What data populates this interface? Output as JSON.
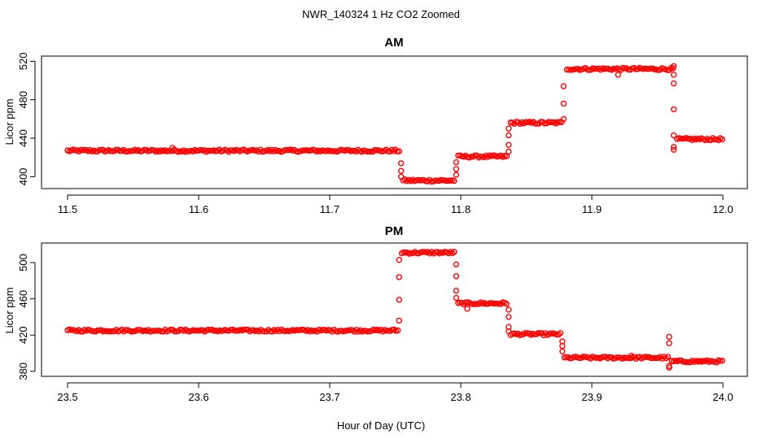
{
  "chart_data": {
    "type": "scatter",
    "title": "NWR_140324  1 Hz CO2 Zoomed",
    "xlabel": "Hour of Day (UTC)",
    "point_color": "#ff0000",
    "marker": "open-circle",
    "panels": [
      {
        "title": "AM",
        "ylabel": "Licor ppm",
        "xlim": [
          11.5,
          12.0
        ],
        "ylim": [
          391,
          522
        ],
        "x_ticks": [
          11.5,
          11.6,
          11.7,
          11.8,
          11.9,
          12.0
        ],
        "x_tick_labels": [
          "11.5",
          "11.6",
          "11.7",
          "11.8",
          "11.9",
          "12.0"
        ],
        "y_ticks": [
          400,
          440,
          480,
          520
        ],
        "y_tick_labels": [
          "400",
          "440",
          "480",
          "520"
        ],
        "steps": [
          {
            "x_start": 11.5,
            "x_end": 11.753,
            "value": 427
          },
          {
            "x_start": 11.756,
            "x_end": 11.795,
            "value": 396
          },
          {
            "x_start": 11.798,
            "x_end": 11.835,
            "value": 421
          },
          {
            "x_start": 11.838,
            "x_end": 11.877,
            "value": 456
          },
          {
            "x_start": 11.881,
            "x_end": 11.962,
            "value": 512
          },
          {
            "x_start": 11.965,
            "x_end": 11.9995,
            "value": 439
          }
        ],
        "transitions": [
          {
            "x": 11.7545,
            "values": [
              414,
              406,
              400
            ]
          },
          {
            "x": 11.7965,
            "values": [
              402,
              408,
              415
            ]
          },
          {
            "x": 11.8365,
            "values": [
              426,
              433,
              443,
              450
            ]
          },
          {
            "x": 11.8785,
            "values": [
              460,
              476,
              494
            ]
          },
          {
            "x": 11.9625,
            "values": [
              515,
              506,
              497,
              470,
              443,
              431,
              428
            ]
          }
        ],
        "outliers": [
          {
            "x": 11.92,
            "y": 506
          },
          {
            "x": 11.58,
            "y": 430
          }
        ]
      },
      {
        "title": "PM",
        "ylabel": "Licor ppm",
        "xlim": [
          23.5,
          24.0
        ],
        "ylim": [
          378,
          518
        ],
        "x_ticks": [
          23.5,
          23.6,
          23.7,
          23.8,
          23.9,
          24.0
        ],
        "x_tick_labels": [
          "23.5",
          "23.6",
          "23.7",
          "23.8",
          "23.9",
          "24.0"
        ],
        "y_ticks": [
          380,
          420,
          460,
          500
        ],
        "y_tick_labels": [
          "380",
          "420",
          "460",
          "500"
        ],
        "steps": [
          {
            "x_start": 23.5,
            "x_end": 23.752,
            "value": 425
          },
          {
            "x_start": 23.755,
            "x_end": 23.795,
            "value": 511
          },
          {
            "x_start": 23.798,
            "x_end": 23.835,
            "value": 455
          },
          {
            "x_start": 23.838,
            "x_end": 23.876,
            "value": 421
          },
          {
            "x_start": 23.879,
            "x_end": 23.958,
            "value": 395
          },
          {
            "x_start": 23.961,
            "x_end": 23.9995,
            "value": 391
          }
        ],
        "transitions": [
          {
            "x": 23.753,
            "values": [
              436,
              459,
              484,
              503
            ]
          },
          {
            "x": 23.7965,
            "values": [
              498,
              485,
              469,
              461
            ]
          },
          {
            "x": 23.8365,
            "values": [
              448,
              440,
              429,
              424
            ]
          },
          {
            "x": 23.8775,
            "values": [
              413,
              408,
              402
            ]
          },
          {
            "x": 23.959,
            "values": [
              418,
              411,
              386,
              384
            ]
          }
        ],
        "outliers": [
          {
            "x": 23.805,
            "y": 449
          },
          {
            "x": 23.93,
            "y": 397
          }
        ]
      }
    ]
  }
}
